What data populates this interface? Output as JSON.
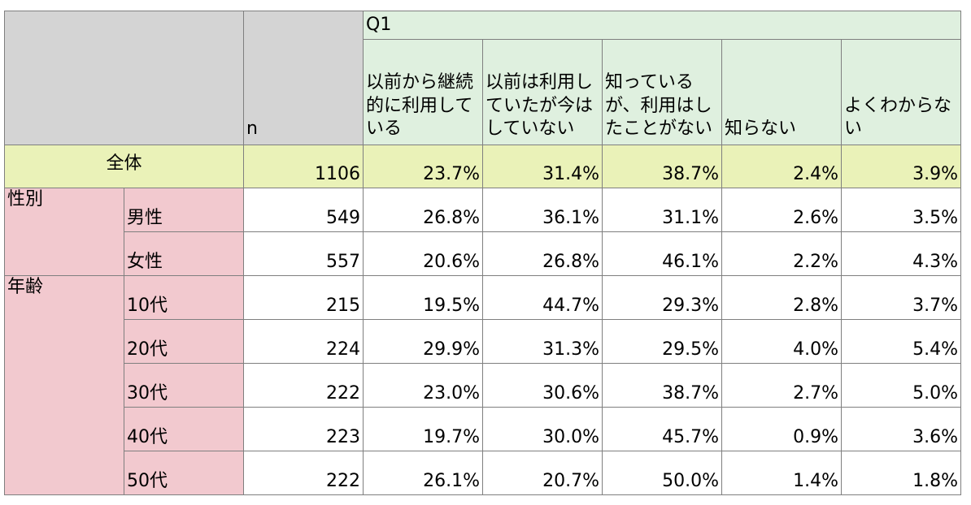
{
  "header": {
    "n_label": "n",
    "question": "Q1",
    "columns": [
      "以前から継続的に利用している",
      "以前は利用していたが今はしていない",
      "知っているが、利用はしたことがない",
      "知らない",
      "よくわからない"
    ]
  },
  "total": {
    "label": "全体",
    "n": "1106",
    "values": [
      "23.7%",
      "31.4%",
      "38.7%",
      "2.4%",
      "3.9%"
    ]
  },
  "groups": [
    {
      "label": "性別",
      "rows": [
        {
          "label": "男性",
          "n": "549",
          "values": [
            "26.8%",
            "36.1%",
            "31.1%",
            "2.6%",
            "3.5%"
          ]
        },
        {
          "label": "女性",
          "n": "557",
          "values": [
            "20.6%",
            "26.8%",
            "46.1%",
            "2.2%",
            "4.3%"
          ]
        }
      ]
    },
    {
      "label": "年齢",
      "rows": [
        {
          "label": "10代",
          "n": "215",
          "values": [
            "19.5%",
            "44.7%",
            "29.3%",
            "2.8%",
            "3.7%"
          ]
        },
        {
          "label": "20代",
          "n": "224",
          "values": [
            "29.9%",
            "31.3%",
            "29.5%",
            "4.0%",
            "5.4%"
          ]
        },
        {
          "label": "30代",
          "n": "222",
          "values": [
            "23.0%",
            "30.6%",
            "38.7%",
            "2.7%",
            "5.0%"
          ]
        },
        {
          "label": "40代",
          "n": "223",
          "values": [
            "19.7%",
            "30.0%",
            "45.7%",
            "0.9%",
            "3.6%"
          ]
        },
        {
          "label": "50代",
          "n": "222",
          "values": [
            "26.1%",
            "20.7%",
            "50.0%",
            "1.4%",
            "1.8%"
          ]
        }
      ]
    }
  ],
  "chart_data": {
    "type": "table",
    "question": "Q1",
    "categories": [
      "全体",
      "男性",
      "女性",
      "10代",
      "20代",
      "30代",
      "40代",
      "50代"
    ],
    "n": [
      1106,
      549,
      557,
      215,
      224,
      222,
      223,
      222
    ],
    "series": [
      {
        "name": "以前から継続的に利用している",
        "values": [
          23.7,
          26.8,
          20.6,
          19.5,
          29.9,
          23.0,
          19.7,
          26.1
        ]
      },
      {
        "name": "以前は利用していたが今はしていない",
        "values": [
          31.4,
          36.1,
          26.8,
          44.7,
          31.3,
          30.6,
          30.0,
          20.7
        ]
      },
      {
        "name": "知っているが、利用はしたことがない",
        "values": [
          38.7,
          31.1,
          46.1,
          29.3,
          29.5,
          38.7,
          45.7,
          50.0
        ]
      },
      {
        "name": "知らない",
        "values": [
          2.4,
          2.6,
          2.2,
          2.8,
          4.0,
          2.7,
          0.9,
          1.4
        ]
      },
      {
        "name": "よくわからない",
        "values": [
          3.9,
          3.5,
          4.3,
          3.7,
          5.4,
          5.0,
          3.6,
          1.8
        ]
      }
    ],
    "colors": {
      "header_gray": "#d4d4d4",
      "header_green": "#dff0df",
      "total_yellow": "#eaf2b8",
      "group_pink": "#f2c9cf"
    }
  }
}
